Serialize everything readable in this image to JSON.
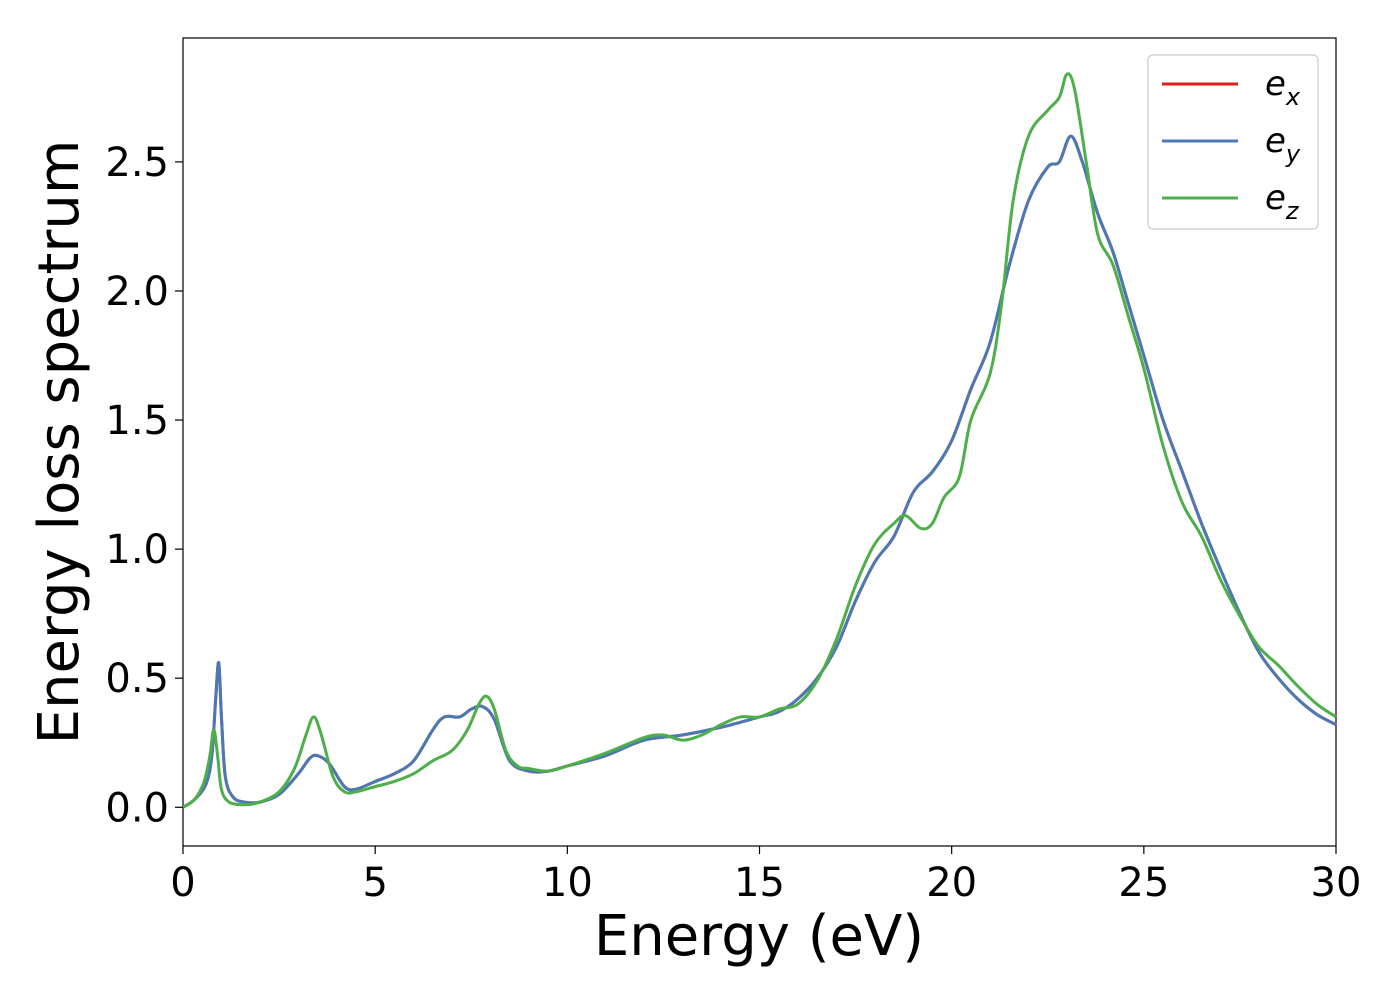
{
  "chart_data": {
    "type": "line",
    "title": "",
    "xlabel": "Energy (eV)",
    "ylabel": "Energy loss spectrum",
    "xlim": [
      0,
      30
    ],
    "ylim": [
      -0.15,
      2.98
    ],
    "xticks": [
      0,
      5,
      10,
      15,
      20,
      25,
      30
    ],
    "yticks": [
      0.0,
      0.5,
      1.0,
      1.5,
      2.0,
      2.5
    ],
    "xtick_labels": [
      "0",
      "5",
      "10",
      "15",
      "20",
      "25",
      "30"
    ],
    "ytick_labels": [
      "0.0",
      "0.5",
      "1.0",
      "1.5",
      "2.0",
      "2.5"
    ],
    "grid": false,
    "legend_position": "top-right",
    "series": [
      {
        "name": "e_x",
        "legend_base": "e",
        "legend_sub": "x",
        "color": "#e41a1c",
        "points": [
          [
            0,
            0
          ],
          [
            0.3,
            0.03
          ],
          [
            0.6,
            0.09
          ],
          [
            0.75,
            0.2
          ],
          [
            0.85,
            0.42
          ],
          [
            0.93,
            0.56
          ],
          [
            1.0,
            0.35
          ],
          [
            1.1,
            0.12
          ],
          [
            1.3,
            0.04
          ],
          [
            1.6,
            0.02
          ],
          [
            2.0,
            0.02
          ],
          [
            2.5,
            0.05
          ],
          [
            3.0,
            0.13
          ],
          [
            3.3,
            0.19
          ],
          [
            3.5,
            0.2
          ],
          [
            3.8,
            0.17
          ],
          [
            4.2,
            0.08
          ],
          [
            4.5,
            0.07
          ],
          [
            5.0,
            0.1
          ],
          [
            5.5,
            0.13
          ],
          [
            6.0,
            0.18
          ],
          [
            6.5,
            0.3
          ],
          [
            6.8,
            0.35
          ],
          [
            7.2,
            0.35
          ],
          [
            7.5,
            0.38
          ],
          [
            7.8,
            0.39
          ],
          [
            8.1,
            0.34
          ],
          [
            8.5,
            0.18
          ],
          [
            9.0,
            0.14
          ],
          [
            9.5,
            0.14
          ],
          [
            10,
            0.16
          ],
          [
            11,
            0.2
          ],
          [
            12,
            0.26
          ],
          [
            13,
            0.28
          ],
          [
            14,
            0.31
          ],
          [
            15,
            0.35
          ],
          [
            15.5,
            0.37
          ],
          [
            16,
            0.42
          ],
          [
            16.5,
            0.5
          ],
          [
            17,
            0.62
          ],
          [
            17.5,
            0.8
          ],
          [
            18,
            0.95
          ],
          [
            18.5,
            1.05
          ],
          [
            19,
            1.22
          ],
          [
            19.5,
            1.3
          ],
          [
            20,
            1.42
          ],
          [
            20.5,
            1.62
          ],
          [
            21,
            1.8
          ],
          [
            21.5,
            2.1
          ],
          [
            22,
            2.35
          ],
          [
            22.5,
            2.48
          ],
          [
            22.8,
            2.5
          ],
          [
            23.1,
            2.6
          ],
          [
            23.4,
            2.5
          ],
          [
            23.8,
            2.3
          ],
          [
            24.2,
            2.15
          ],
          [
            24.6,
            1.95
          ],
          [
            25,
            1.75
          ],
          [
            25.5,
            1.5
          ],
          [
            26,
            1.3
          ],
          [
            26.5,
            1.1
          ],
          [
            27,
            0.92
          ],
          [
            27.5,
            0.75
          ],
          [
            28,
            0.6
          ],
          [
            28.5,
            0.5
          ],
          [
            29,
            0.42
          ],
          [
            29.5,
            0.36
          ],
          [
            30,
            0.32
          ]
        ]
      },
      {
        "name": "e_y",
        "legend_base": "e",
        "legend_sub": "y",
        "color": "#4a7ab5",
        "points": [
          [
            0,
            0
          ],
          [
            0.3,
            0.03
          ],
          [
            0.6,
            0.09
          ],
          [
            0.75,
            0.2
          ],
          [
            0.85,
            0.42
          ],
          [
            0.93,
            0.56
          ],
          [
            1.0,
            0.35
          ],
          [
            1.1,
            0.12
          ],
          [
            1.3,
            0.04
          ],
          [
            1.6,
            0.02
          ],
          [
            2.0,
            0.02
          ],
          [
            2.5,
            0.05
          ],
          [
            3.0,
            0.13
          ],
          [
            3.3,
            0.19
          ],
          [
            3.5,
            0.2
          ],
          [
            3.8,
            0.17
          ],
          [
            4.2,
            0.08
          ],
          [
            4.5,
            0.07
          ],
          [
            5.0,
            0.1
          ],
          [
            5.5,
            0.13
          ],
          [
            6.0,
            0.18
          ],
          [
            6.5,
            0.3
          ],
          [
            6.8,
            0.35
          ],
          [
            7.2,
            0.35
          ],
          [
            7.5,
            0.38
          ],
          [
            7.8,
            0.39
          ],
          [
            8.1,
            0.34
          ],
          [
            8.5,
            0.18
          ],
          [
            9.0,
            0.14
          ],
          [
            9.5,
            0.14
          ],
          [
            10,
            0.16
          ],
          [
            11,
            0.2
          ],
          [
            12,
            0.26
          ],
          [
            13,
            0.28
          ],
          [
            14,
            0.31
          ],
          [
            15,
            0.35
          ],
          [
            15.5,
            0.37
          ],
          [
            16,
            0.42
          ],
          [
            16.5,
            0.5
          ],
          [
            17,
            0.62
          ],
          [
            17.5,
            0.8
          ],
          [
            18,
            0.95
          ],
          [
            18.5,
            1.05
          ],
          [
            19,
            1.22
          ],
          [
            19.5,
            1.3
          ],
          [
            20,
            1.42
          ],
          [
            20.5,
            1.62
          ],
          [
            21,
            1.8
          ],
          [
            21.5,
            2.1
          ],
          [
            22,
            2.35
          ],
          [
            22.5,
            2.48
          ],
          [
            22.8,
            2.5
          ],
          [
            23.1,
            2.6
          ],
          [
            23.4,
            2.5
          ],
          [
            23.8,
            2.3
          ],
          [
            24.2,
            2.15
          ],
          [
            24.6,
            1.95
          ],
          [
            25,
            1.75
          ],
          [
            25.5,
            1.5
          ],
          [
            26,
            1.3
          ],
          [
            26.5,
            1.1
          ],
          [
            27,
            0.92
          ],
          [
            27.5,
            0.75
          ],
          [
            28,
            0.6
          ],
          [
            28.5,
            0.5
          ],
          [
            29,
            0.42
          ],
          [
            29.5,
            0.36
          ],
          [
            30,
            0.32
          ]
        ]
      },
      {
        "name": "e_z",
        "legend_base": "e",
        "legend_sub": "z",
        "color": "#4daf4a",
        "points": [
          [
            0,
            0
          ],
          [
            0.3,
            0.03
          ],
          [
            0.55,
            0.1
          ],
          [
            0.7,
            0.2
          ],
          [
            0.8,
            0.3
          ],
          [
            0.9,
            0.2
          ],
          [
            1.0,
            0.07
          ],
          [
            1.2,
            0.02
          ],
          [
            1.6,
            0.01
          ],
          [
            2.0,
            0.02
          ],
          [
            2.5,
            0.06
          ],
          [
            2.9,
            0.15
          ],
          [
            3.2,
            0.28
          ],
          [
            3.4,
            0.35
          ],
          [
            3.6,
            0.28
          ],
          [
            3.9,
            0.12
          ],
          [
            4.2,
            0.06
          ],
          [
            4.5,
            0.06
          ],
          [
            5.0,
            0.08
          ],
          [
            5.5,
            0.1
          ],
          [
            6.0,
            0.13
          ],
          [
            6.5,
            0.18
          ],
          [
            7.0,
            0.22
          ],
          [
            7.4,
            0.3
          ],
          [
            7.7,
            0.4
          ],
          [
            7.9,
            0.43
          ],
          [
            8.1,
            0.38
          ],
          [
            8.4,
            0.22
          ],
          [
            8.7,
            0.16
          ],
          [
            9.0,
            0.15
          ],
          [
            9.5,
            0.14
          ],
          [
            10,
            0.16
          ],
          [
            11,
            0.21
          ],
          [
            12,
            0.27
          ],
          [
            12.5,
            0.28
          ],
          [
            13,
            0.26
          ],
          [
            13.5,
            0.28
          ],
          [
            14,
            0.32
          ],
          [
            14.5,
            0.35
          ],
          [
            15,
            0.35
          ],
          [
            15.5,
            0.38
          ],
          [
            16,
            0.4
          ],
          [
            16.5,
            0.49
          ],
          [
            17,
            0.65
          ],
          [
            17.5,
            0.86
          ],
          [
            18,
            1.02
          ],
          [
            18.5,
            1.1
          ],
          [
            18.8,
            1.13
          ],
          [
            19.2,
            1.08
          ],
          [
            19.5,
            1.1
          ],
          [
            19.8,
            1.2
          ],
          [
            20.2,
            1.28
          ],
          [
            20.5,
            1.5
          ],
          [
            21,
            1.68
          ],
          [
            21.3,
            1.95
          ],
          [
            21.6,
            2.35
          ],
          [
            22,
            2.6
          ],
          [
            22.5,
            2.7
          ],
          [
            22.8,
            2.75
          ],
          [
            23.0,
            2.84
          ],
          [
            23.2,
            2.78
          ],
          [
            23.5,
            2.5
          ],
          [
            23.8,
            2.22
          ],
          [
            24.2,
            2.1
          ],
          [
            24.6,
            1.9
          ],
          [
            25,
            1.7
          ],
          [
            25.5,
            1.4
          ],
          [
            26,
            1.18
          ],
          [
            26.5,
            1.05
          ],
          [
            27,
            0.88
          ],
          [
            27.5,
            0.74
          ],
          [
            28,
            0.62
          ],
          [
            28.5,
            0.55
          ],
          [
            29,
            0.47
          ],
          [
            29.5,
            0.4
          ],
          [
            30,
            0.35
          ]
        ]
      }
    ]
  }
}
